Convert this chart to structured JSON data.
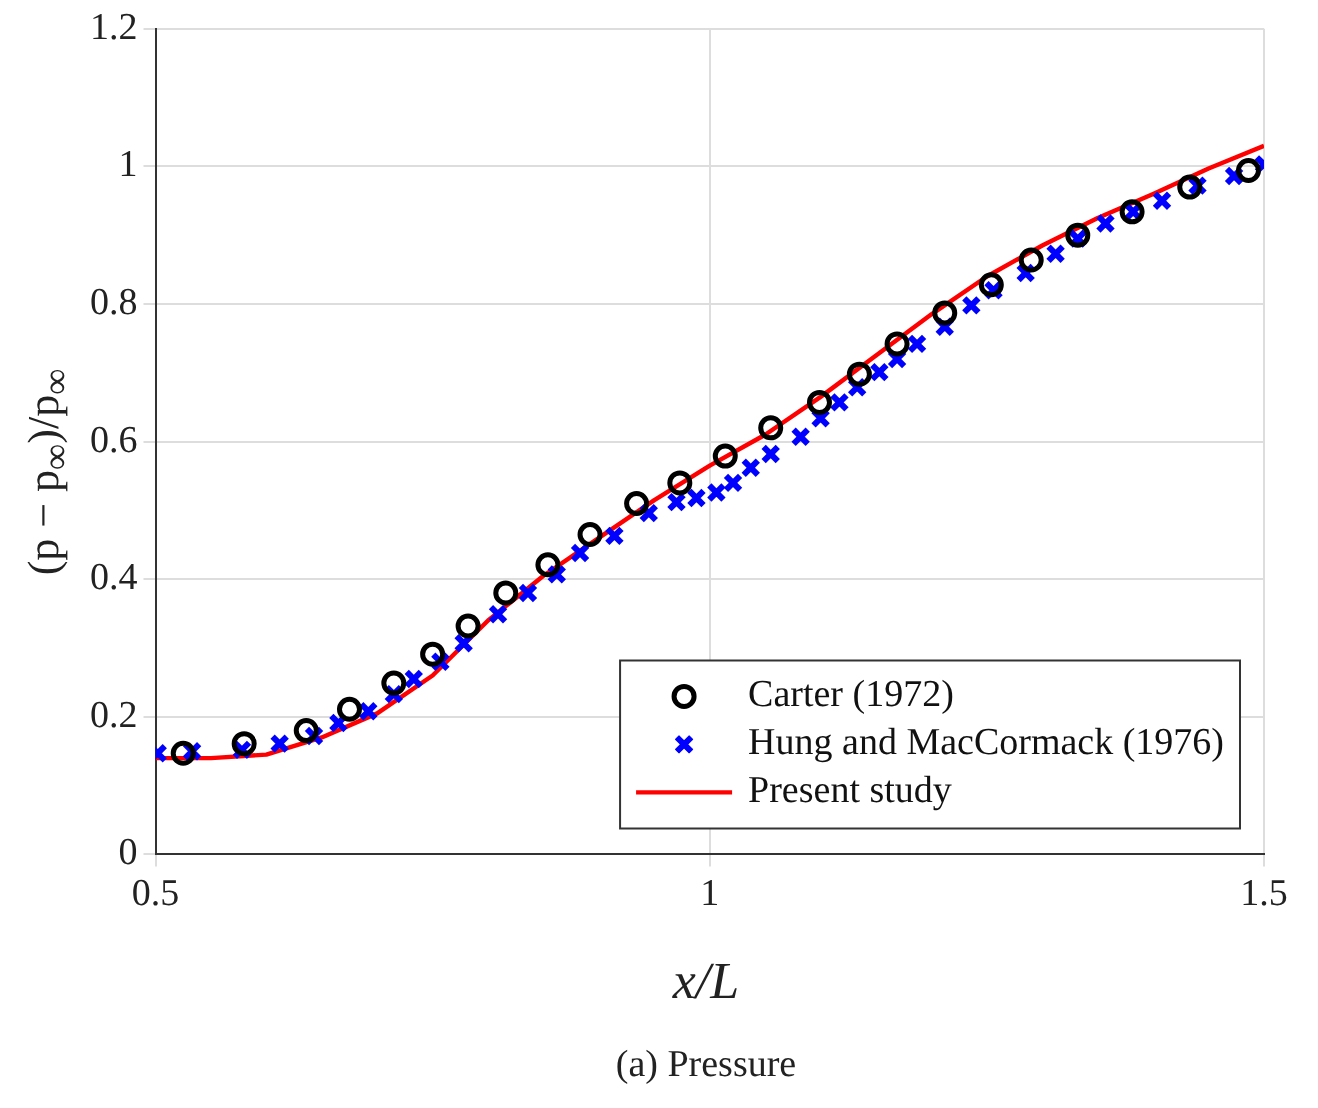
{
  "chart_data": {
    "type": "scatter",
    "xlabel": "x/L",
    "ylabel": "(p − p$_{∞}$)/p$_{∞}$",
    "annotations": [
      "(a) Pressure"
    ],
    "xlim": [
      0.5,
      1.5
    ],
    "xticks": [
      0.5,
      1,
      1.5
    ],
    "ylim": [
      0,
      1.2
    ],
    "yticks": [
      0,
      0.2,
      0.4,
      0.6,
      0.8,
      1,
      1.2
    ],
    "grid": true,
    "legend": "bottom right",
    "series": [
      {
        "name": "Carter (1972)",
        "type": "scatter",
        "marker": "circle",
        "color": "#000000",
        "x": [
          0.525,
          0.58,
          0.636,
          0.675,
          0.715,
          0.75,
          0.782,
          0.816,
          0.854,
          0.892,
          0.934,
          0.973,
          1.014,
          1.055,
          1.099,
          1.135,
          1.169,
          1.212,
          1.254,
          1.29,
          1.332,
          1.381,
          1.433,
          1.486
        ],
        "values": [
          0.147,
          0.161,
          0.18,
          0.211,
          0.249,
          0.291,
          0.332,
          0.38,
          0.421,
          0.465,
          0.51,
          0.54,
          0.579,
          0.62,
          0.657,
          0.698,
          0.742,
          0.787,
          0.828,
          0.864,
          0.9,
          0.934,
          0.97,
          0.994
        ]
      },
      {
        "name": "Hung and MacCormack (1976)",
        "type": "scatter",
        "marker": "cross",
        "color": "#0000ff",
        "x": [
          0.502,
          0.533,
          0.578,
          0.612,
          0.643,
          0.665,
          0.692,
          0.715,
          0.733,
          0.757,
          0.778,
          0.809,
          0.836,
          0.862,
          0.883,
          0.914,
          0.945,
          0.97,
          0.988,
          1.006,
          1.021,
          1.037,
          1.055,
          1.082,
          1.1,
          1.117,
          1.133,
          1.153,
          1.169,
          1.187,
          1.212,
          1.236,
          1.256,
          1.285,
          1.312,
          1.332,
          1.357,
          1.382,
          1.408,
          1.44,
          1.473,
          1.5
        ],
        "values": [
          0.147,
          0.15,
          0.152,
          0.161,
          0.172,
          0.191,
          0.208,
          0.233,
          0.255,
          0.28,
          0.307,
          0.349,
          0.38,
          0.407,
          0.438,
          0.463,
          0.496,
          0.512,
          0.518,
          0.526,
          0.54,
          0.562,
          0.582,
          0.607,
          0.634,
          0.657,
          0.679,
          0.701,
          0.72,
          0.742,
          0.767,
          0.798,
          0.82,
          0.845,
          0.873,
          0.895,
          0.917,
          0.934,
          0.95,
          0.972,
          0.986,
          1.003
        ]
      },
      {
        "name": "Present study",
        "type": "line",
        "marker": "none",
        "line_style": "solid",
        "color": "#ff0000",
        "x": [
          0.5,
          0.55,
          0.6,
          0.65,
          0.7,
          0.75,
          0.8,
          0.85,
          0.9,
          0.95,
          1.0,
          1.05,
          1.1,
          1.15,
          1.2,
          1.25,
          1.3,
          1.35,
          1.4,
          1.45,
          1.5
        ],
        "values": [
          0.14,
          0.14,
          0.145,
          0.17,
          0.205,
          0.26,
          0.34,
          0.405,
          0.46,
          0.515,
          0.565,
          0.61,
          0.665,
          0.725,
          0.785,
          0.84,
          0.885,
          0.925,
          0.96,
          0.997,
          1.03
        ]
      }
    ]
  }
}
